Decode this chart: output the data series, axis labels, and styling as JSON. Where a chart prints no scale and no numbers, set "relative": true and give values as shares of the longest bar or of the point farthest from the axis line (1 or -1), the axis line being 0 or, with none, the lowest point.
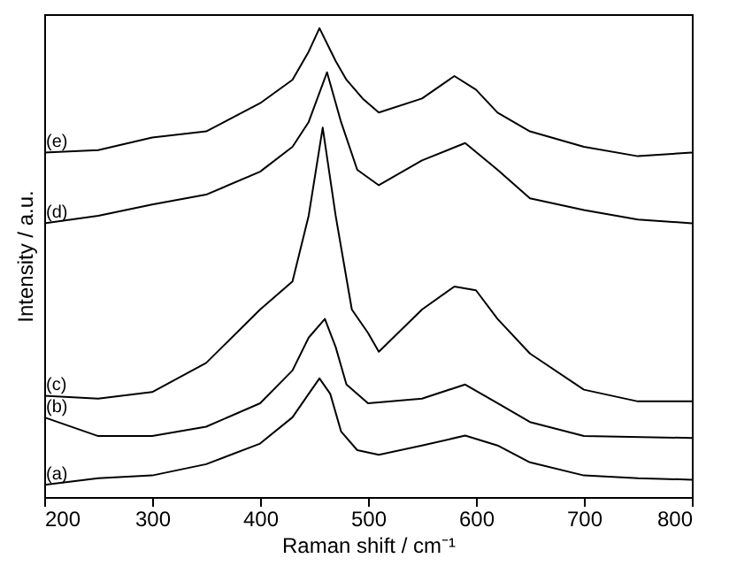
{
  "chart_data": {
    "type": "line",
    "relative": true,
    "xlabel": "Raman shift / cm⁻¹",
    "ylabel": "Intensity / a.u.",
    "xlim": [
      200,
      800
    ],
    "xticks": [
      200,
      300,
      400,
      500,
      600,
      700,
      800
    ],
    "grid": false,
    "legend": false,
    "marker": "none",
    "line_style": "solid",
    "tick_labels": "x",
    "series": [
      {
        "name": "(a)",
        "color": "#000000",
        "x": [
          200,
          250,
          300,
          350,
          400,
          430,
          445,
          455,
          465,
          475,
          490,
          510,
          550,
          590,
          620,
          650,
          700,
          750,
          800
        ],
        "values": [
          0.026,
          0.04,
          0.046,
          0.07,
          0.114,
          0.17,
          0.22,
          0.253,
          0.22,
          0.14,
          0.1,
          0.09,
          0.11,
          0.131,
          0.11,
          0.074,
          0.046,
          0.04,
          0.037
        ]
      },
      {
        "name": "(b)",
        "color": "#000000",
        "x": [
          200,
          250,
          300,
          350,
          400,
          430,
          445,
          460,
          470,
          480,
          500,
          550,
          590,
          620,
          650,
          700,
          800
        ],
        "values": [
          0.17,
          0.13,
          0.13,
          0.15,
          0.2,
          0.27,
          0.34,
          0.38,
          0.32,
          0.24,
          0.2,
          0.21,
          0.24,
          0.2,
          0.16,
          0.13,
          0.126
        ]
      },
      {
        "name": "(c)",
        "color": "#000000",
        "x": [
          200,
          250,
          300,
          350,
          400,
          430,
          445,
          458,
          470,
          485,
          500,
          510,
          550,
          580,
          600,
          620,
          650,
          700,
          750,
          800
        ],
        "values": [
          0.216,
          0.21,
          0.224,
          0.286,
          0.4,
          0.46,
          0.6,
          0.788,
          0.6,
          0.4,
          0.35,
          0.31,
          0.4,
          0.449,
          0.441,
          0.38,
          0.306,
          0.229,
          0.204,
          0.204
        ]
      },
      {
        "name": "(d)",
        "color": "#000000",
        "x": [
          200,
          250,
          300,
          350,
          400,
          430,
          445,
          462,
          475,
          490,
          510,
          550,
          590,
          620,
          650,
          700,
          750,
          800
        ],
        "values": [
          0.584,
          0.6,
          0.624,
          0.645,
          0.694,
          0.747,
          0.8,
          0.906,
          0.8,
          0.698,
          0.665,
          0.718,
          0.755,
          0.698,
          0.637,
          0.612,
          0.592,
          0.584
        ]
      },
      {
        "name": "(e)",
        "color": "#000000",
        "x": [
          200,
          250,
          300,
          350,
          400,
          430,
          445,
          455,
          470,
          480,
          495,
          510,
          550,
          580,
          600,
          620,
          650,
          700,
          750,
          800
        ],
        "values": [
          0.735,
          0.74,
          0.767,
          0.78,
          0.84,
          0.89,
          0.95,
          1.0,
          0.93,
          0.89,
          0.85,
          0.82,
          0.85,
          0.898,
          0.869,
          0.82,
          0.78,
          0.747,
          0.727,
          0.735
        ]
      }
    ]
  }
}
